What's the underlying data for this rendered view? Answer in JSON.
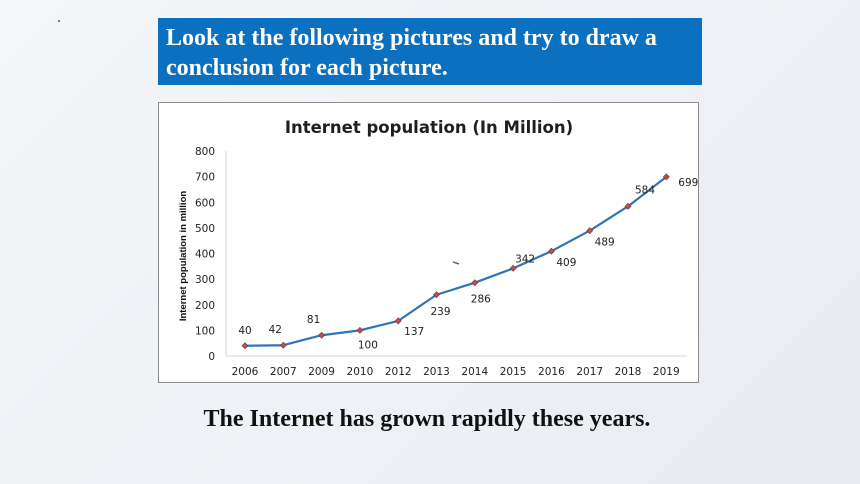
{
  "header": {
    "line1": "Look at the following pictures and try to draw a",
    "line2": "conclusion for each picture."
  },
  "conclusion": "The Internet has grown rapidly these years.",
  "colors": {
    "header_bg": "#0b70c0",
    "line": "#2e75b6",
    "marker": "#c0504d"
  },
  "chart_data": {
    "type": "line",
    "title": "Internet population (In Million)",
    "xlabel": "",
    "ylabel": "Internet population in million",
    "categories": [
      "2006",
      "2007",
      "2009",
      "2010",
      "2012",
      "2013",
      "2014",
      "2015",
      "2016",
      "2017",
      "2018",
      "2019"
    ],
    "values": [
      40,
      42,
      81,
      100,
      137,
      239,
      286,
      342,
      409,
      489,
      584,
      699
    ],
    "ylim": [
      0,
      800
    ],
    "yticks": [
      0,
      100,
      200,
      300,
      400,
      500,
      600,
      700,
      800
    ],
    "grid": false,
    "legend": "none"
  }
}
